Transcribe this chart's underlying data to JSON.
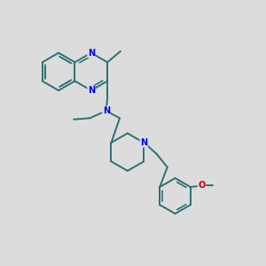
{
  "background_color": "#dcdcdc",
  "bond_color": "#2d7070",
  "nitrogen_color": "#0000ee",
  "oxygen_color": "#cc0000",
  "bond_width": 1.4,
  "figsize": [
    3.0,
    3.0
  ],
  "dpi": 100,
  "xlim": [
    0,
    10
  ],
  "ylim": [
    0,
    10
  ]
}
